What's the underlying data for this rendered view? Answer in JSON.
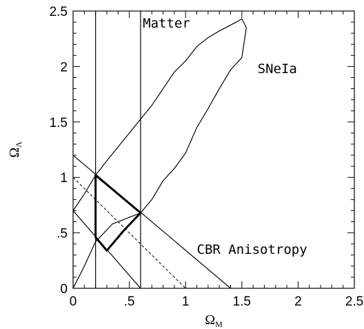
{
  "chart_data": {
    "type": "line",
    "title": "",
    "xlabel": {
      "main": "Ω",
      "sub": "M"
    },
    "ylabel": {
      "main": "Ω",
      "sub": "Λ"
    },
    "xlim": [
      0,
      2.5
    ],
    "ylim": [
      0,
      2.5
    ],
    "grid": false,
    "legend": "none",
    "x_ticks": [
      {
        "value": 0,
        "label": "0"
      },
      {
        "value": 0.5,
        "label": ".5"
      },
      {
        "value": 1,
        "label": "1"
      },
      {
        "value": 1.5,
        "label": "1.5"
      },
      {
        "value": 2,
        "label": "2"
      },
      {
        "value": 2.5,
        "label": "2.5"
      }
    ],
    "y_ticks": [
      {
        "value": 0,
        "label": "0"
      },
      {
        "value": 0.5,
        "label": ".5"
      },
      {
        "value": 1,
        "label": "1"
      },
      {
        "value": 1.5,
        "label": "1.5"
      },
      {
        "value": 2,
        "label": "2"
      },
      {
        "value": 2.5,
        "label": "2.5"
      }
    ],
    "series": [
      {
        "style": "solid",
        "width": 1.2,
        "points": [
          [
            0.2,
            0
          ],
          [
            0.2,
            2.5
          ]
        ]
      },
      {
        "style": "solid",
        "width": 1.2,
        "points": [
          [
            0.6,
            0
          ],
          [
            0.6,
            2.5
          ]
        ]
      },
      {
        "style": "solid",
        "width": 1.2,
        "closed": true,
        "points": [
          [
            0,
            0
          ],
          [
            0.1,
            0.2
          ],
          [
            0.2,
            0.42
          ],
          [
            0.35,
            0.58
          ],
          [
            0.6,
            0.68
          ],
          [
            0.7,
            0.8
          ],
          [
            0.8,
            0.97
          ],
          [
            0.9,
            1.08
          ],
          [
            1.0,
            1.22
          ],
          [
            1.1,
            1.45
          ],
          [
            1.2,
            1.62
          ],
          [
            1.3,
            1.8
          ],
          [
            1.4,
            1.97
          ],
          [
            1.5,
            2.08
          ],
          [
            1.54,
            2.35
          ],
          [
            1.5,
            2.43
          ],
          [
            1.45,
            2.4
          ],
          [
            1.3,
            2.32
          ],
          [
            1.2,
            2.26
          ],
          [
            1.1,
            2.18
          ],
          [
            1.0,
            2.05
          ],
          [
            0.9,
            1.95
          ],
          [
            0.7,
            1.65
          ],
          [
            0.5,
            1.4
          ],
          [
            0.3,
            1.15
          ],
          [
            0.2,
            1.02
          ],
          [
            0.1,
            0.85
          ],
          [
            0,
            0.7
          ]
        ]
      },
      {
        "style": "solid",
        "width": 1.2,
        "points": [
          [
            0,
            1.2
          ],
          [
            1.4,
            0
          ]
        ]
      },
      {
        "style": "solid",
        "width": 1.2,
        "points": [
          [
            0,
            0.7
          ],
          [
            0.6,
            0
          ]
        ]
      },
      {
        "style": "dashed",
        "width": 1.0,
        "points": [
          [
            0,
            1
          ],
          [
            1,
            0
          ]
        ]
      },
      {
        "style": "solid",
        "width": 3.0,
        "closed": true,
        "points": [
          [
            0.2,
            1.02
          ],
          [
            0.6,
            0.68
          ],
          [
            0.45,
            0.52
          ],
          [
            0.3,
            0.34
          ],
          [
            0.2,
            0.46
          ]
        ]
      }
    ],
    "annotations": [
      {
        "text": "Matter",
        "x": 0.62,
        "y": 2.35
      },
      {
        "text": "SNeIa",
        "x": 1.64,
        "y": 1.94
      },
      {
        "text": "CBR Anisotropy",
        "x": 1.1,
        "y": 0.31
      }
    ]
  }
}
